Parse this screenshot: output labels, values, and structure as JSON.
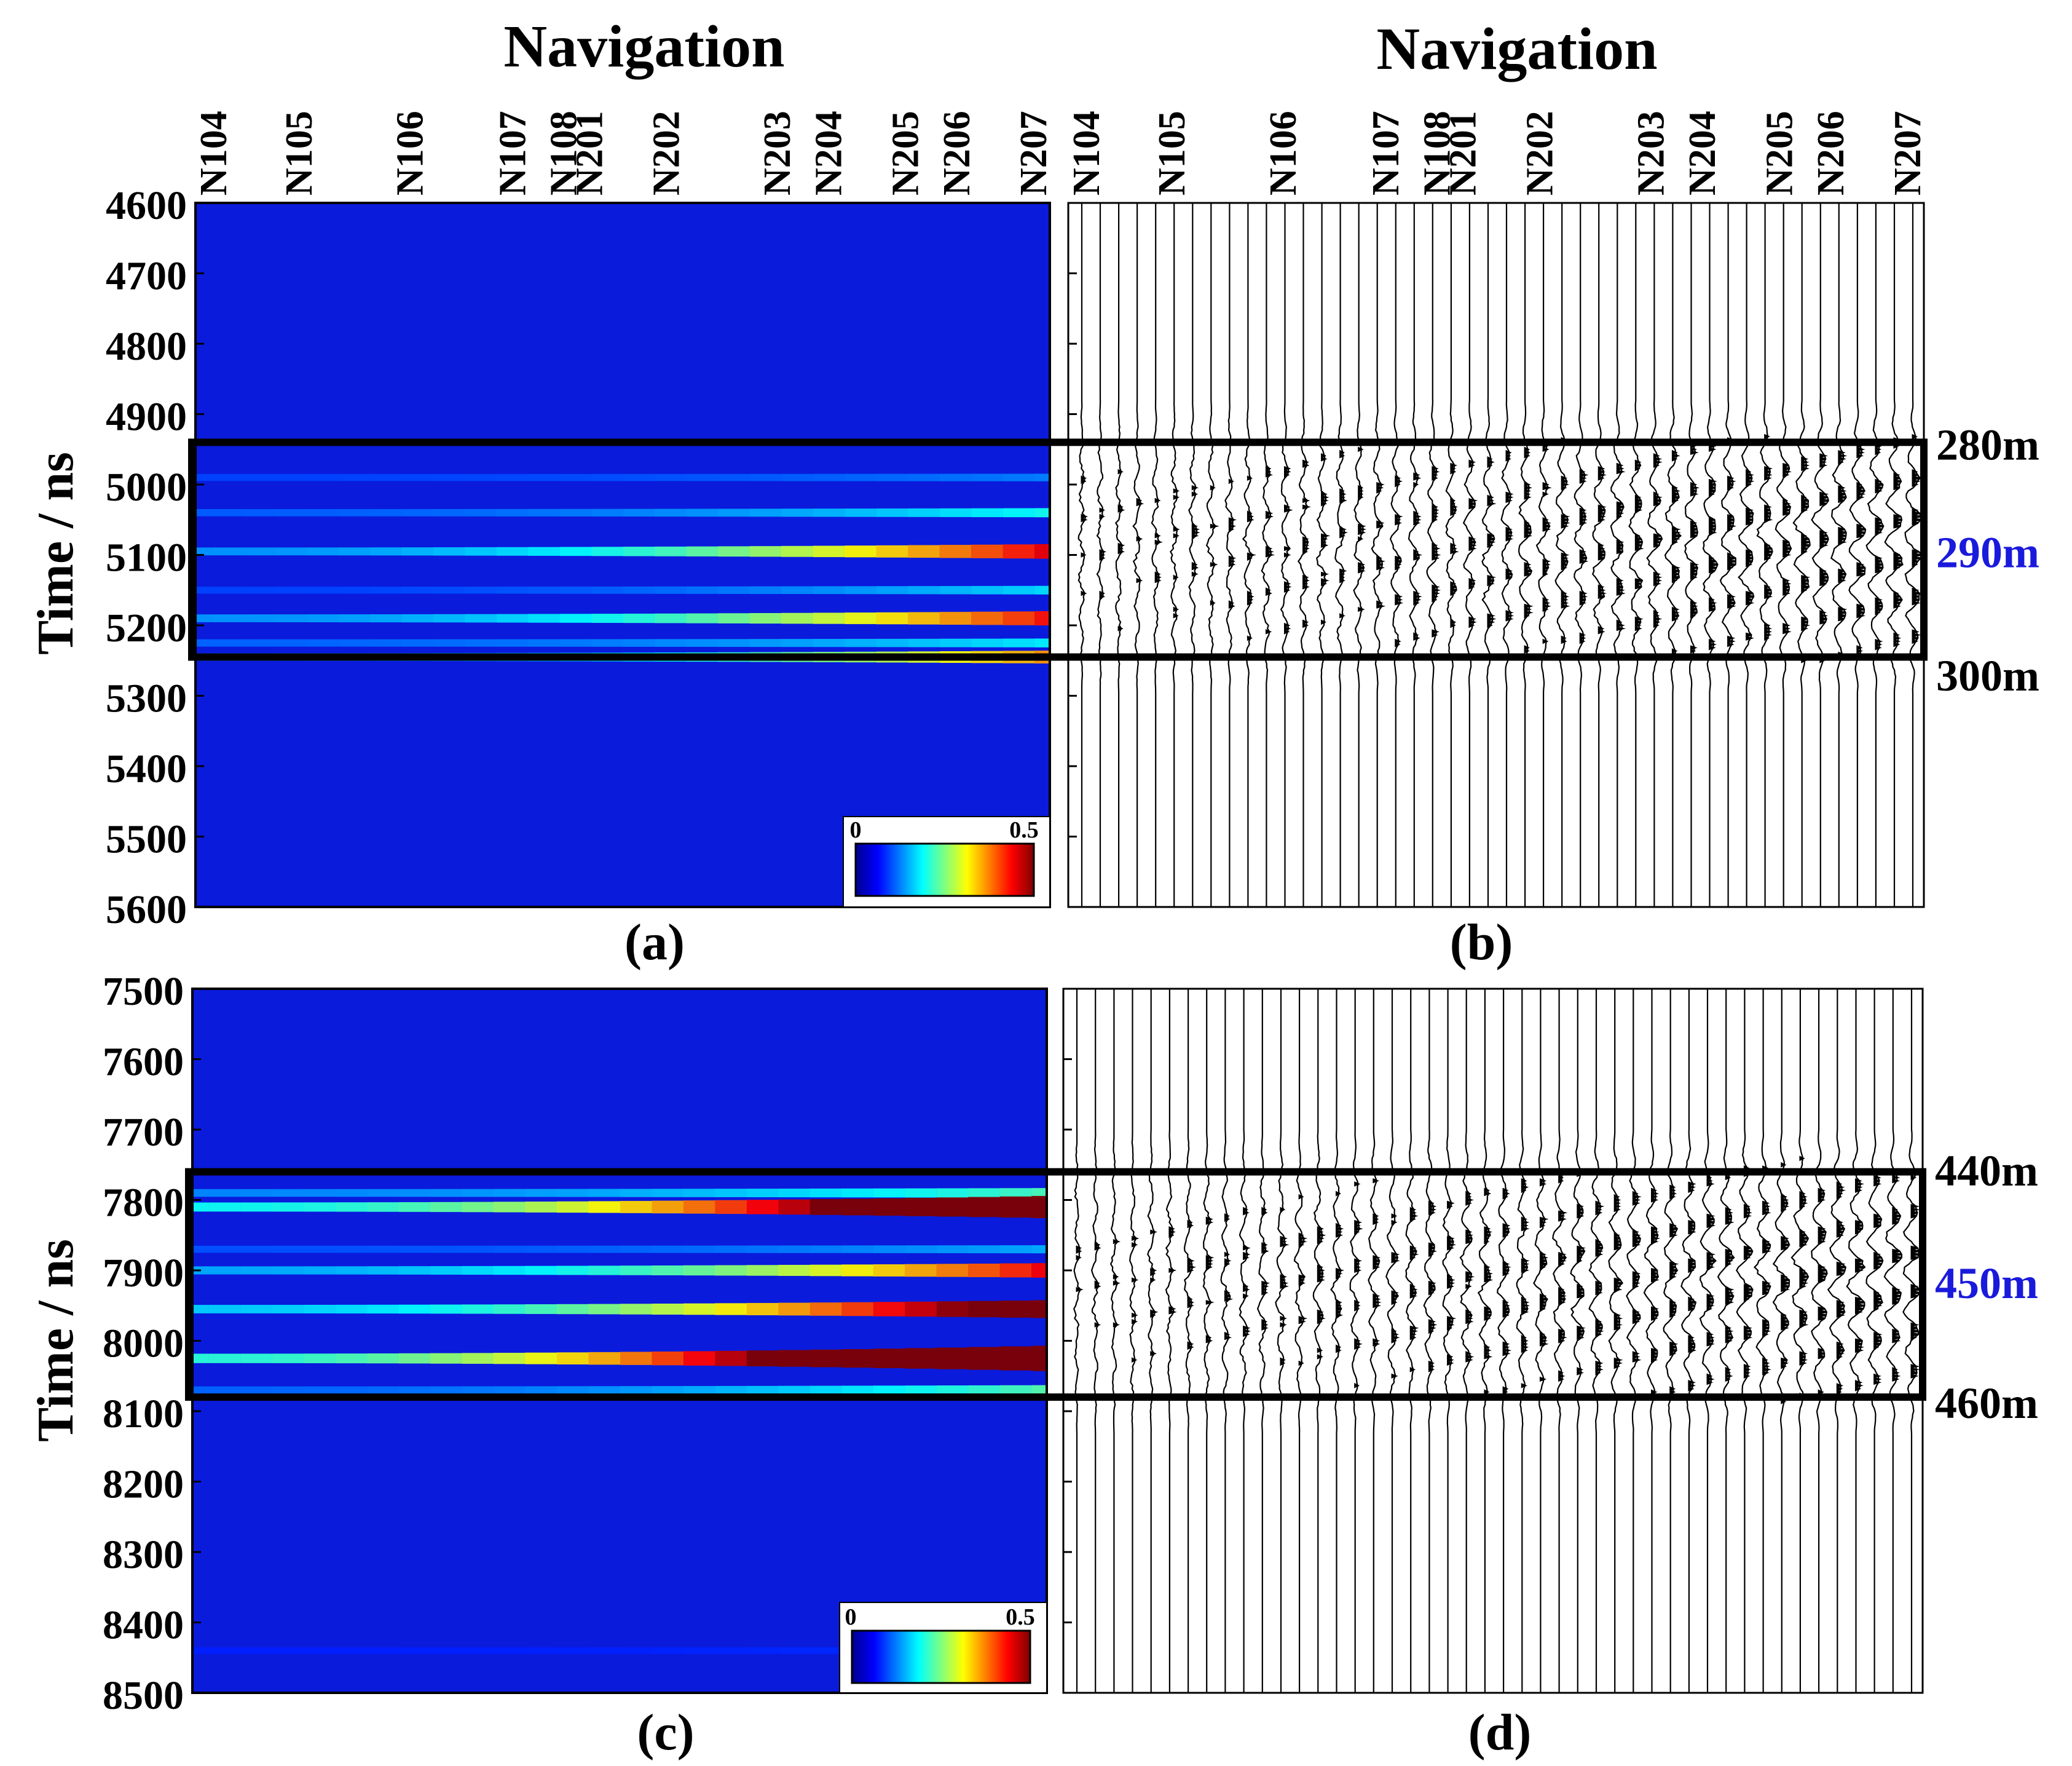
{
  "chart_data": {
    "type": "heatmap",
    "top_title": "Navigation",
    "ylabel": "Time / ns",
    "stations": [
      "N104",
      "N105",
      "N106",
      "N107",
      "N108",
      "N201",
      "N202",
      "N203",
      "N204",
      "N205",
      "N206",
      "N207"
    ],
    "station_positions": [
      0.02,
      0.12,
      0.25,
      0.37,
      0.43,
      0.46,
      0.55,
      0.68,
      0.74,
      0.83,
      0.89,
      0.98
    ],
    "trace_count": 46,
    "colorbar": {
      "min": "0",
      "max": "0.5",
      "min_value": 0,
      "max_value": 0.5,
      "colormap": "jet"
    },
    "panels_top": {
      "ylim": [
        4600,
        5600
      ],
      "yticks": [
        "4600",
        "4700",
        "4800",
        "4900",
        "5000",
        "5100",
        "5200",
        "5300",
        "5400",
        "5500",
        "5600"
      ],
      "box_range": [
        4940,
        5245
      ],
      "depth_labels": [
        {
          "text": "280m",
          "time": 4940,
          "color": "#000000"
        },
        {
          "text": "290m",
          "time": 5093,
          "color": "#1a1adc"
        },
        {
          "text": "300m",
          "time": 5268,
          "color": "#000000"
        }
      ],
      "heatmap_label": "(a)",
      "wiggle_label": "(b)",
      "bands": [
        {
          "t": 4990,
          "amp": 0.1,
          "grow": 0.4
        },
        {
          "t": 5040,
          "amp": 0.14,
          "grow": 0.8
        },
        {
          "t": 5095,
          "amp": 0.22,
          "grow": 1.8
        },
        {
          "t": 5150,
          "amp": 0.1,
          "grow": 1.0
        },
        {
          "t": 5190,
          "amp": 0.22,
          "grow": 1.7
        },
        {
          "t": 5225,
          "amp": 0.15,
          "grow": 0.6
        },
        {
          "t": 5245,
          "amp": 0.2,
          "grow": 1.5
        }
      ]
    },
    "panels_bottom": {
      "ylim": [
        7500,
        8500
      ],
      "yticks": [
        "7500",
        "7600",
        "7700",
        "7800",
        "7900",
        "8000",
        "8100",
        "8200",
        "8300",
        "8400",
        "8500"
      ],
      "box_range": [
        7760,
        8080
      ],
      "depth_labels": [
        {
          "text": "440m",
          "time": 7755,
          "color": "#000000"
        },
        {
          "text": "450m",
          "time": 7915,
          "color": "#1a1adc"
        },
        {
          "text": "460m",
          "time": 8085,
          "color": "#000000"
        }
      ],
      "heatmap_label": "(c)",
      "wiggle_label": "(d)",
      "bands": [
        {
          "t": 7790,
          "amp": 0.2,
          "grow": 0.6
        },
        {
          "t": 7810,
          "amp": 0.38,
          "grow": 2.0
        },
        {
          "t": 7870,
          "amp": 0.12,
          "grow": 0.5
        },
        {
          "t": 7900,
          "amp": 0.25,
          "grow": 1.5
        },
        {
          "t": 7955,
          "amp": 0.3,
          "grow": 1.8
        },
        {
          "t": 8025,
          "amp": 0.42,
          "grow": 2.2
        },
        {
          "t": 8070,
          "amp": 0.15,
          "grow": 1.0
        },
        {
          "t": 8440,
          "amp": 0.05,
          "grow": 0.2
        }
      ]
    }
  }
}
